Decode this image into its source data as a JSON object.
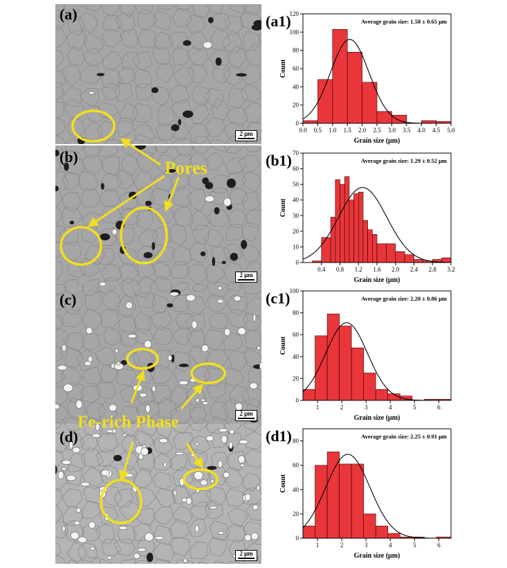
{
  "micrographs": [
    {
      "label": "(a)",
      "scale": "2 μm"
    },
    {
      "label": "(b)",
      "scale": "2 μm"
    },
    {
      "label": "(c)",
      "scale": "2 μm"
    },
    {
      "label": "(d)",
      "scale": "2 μm"
    }
  ],
  "annotations": {
    "pores": "Pores",
    "fe_rich": "Fe-rich Phase"
  },
  "colors": {
    "bar_fill": "#e8363a",
    "fit_line": "#000000",
    "annotation": "#f2df1e",
    "micrograph_bg": "#a6a6a6"
  },
  "chart_data": [
    {
      "type": "bar",
      "label": "(a1)",
      "annotation": "Average grain size: 1.58 ± 0.65 μm",
      "xlabel": "Grain size (μm)",
      "ylabel": "Count",
      "xlim": [
        0,
        5
      ],
      "ylim": [
        0,
        120
      ],
      "xticks": [
        "0.0",
        "0.5",
        "1.0",
        "1.5",
        "2.0",
        "2.5",
        "3.0",
        "3.5",
        "4.0",
        "4.5",
        "5.0"
      ],
      "yticks": [
        "0",
        "20",
        "40",
        "60",
        "80",
        "100",
        "120"
      ],
      "bin_edges": [
        0,
        0.5,
        1,
        1.5,
        2,
        2.5,
        3,
        3.5,
        4,
        4.5,
        5
      ],
      "values": [
        3,
        48,
        103,
        78,
        45,
        13,
        9,
        0,
        3,
        2
      ],
      "fit": {
        "mean": 1.58,
        "sd": 0.65,
        "peak": 92
      }
    },
    {
      "type": "bar",
      "label": "(b1)",
      "annotation": "Average grain size: 1.29 ± 0.52 μm",
      "xlabel": "Grain size (μm)",
      "ylabel": "Count",
      "xlim": [
        0,
        3.2
      ],
      "ylim": [
        0,
        70
      ],
      "xticks": [
        "0.4",
        "0.8",
        "1.2",
        "1.6",
        "2.0",
        "2.4",
        "2.8",
        "3.2"
      ],
      "xtick_values": [
        0.4,
        0.8,
        1.2,
        1.6,
        2.0,
        2.4,
        2.8,
        3.2
      ],
      "yticks": [
        "0",
        "10",
        "20",
        "30",
        "40",
        "50",
        "60",
        "70"
      ],
      "bin_edges": [
        0.2,
        0.4,
        0.6,
        0.7,
        0.8,
        0.9,
        1.0,
        1.1,
        1.2,
        1.3,
        1.4,
        1.5,
        1.6,
        1.8,
        2.0,
        2.2,
        2.4,
        2.6,
        2.8,
        3.0,
        3.2
      ],
      "values": [
        1,
        16,
        29,
        53,
        50,
        55,
        40,
        44,
        45,
        27,
        21,
        18,
        12,
        12,
        7,
        5,
        2,
        1,
        2,
        3
      ],
      "fit": {
        "mean": 1.29,
        "sd": 0.52,
        "peak": 48
      }
    },
    {
      "type": "bar",
      "label": "(c1)",
      "annotation": "Average grain size: 2.20 ± 0.86 μm",
      "xlabel": "Grain size (μm)",
      "ylabel": "Count",
      "xlim": [
        0.4,
        6.5
      ],
      "ylim": [
        0,
        100
      ],
      "xticks": [
        "1",
        "2",
        "3",
        "4",
        "5",
        "6"
      ],
      "xtick_values": [
        1,
        2,
        3,
        4,
        5,
        6
      ],
      "yticks": [
        "0",
        "20",
        "40",
        "60",
        "80",
        "100"
      ],
      "bin_edges": [
        0.4,
        0.9,
        1.4,
        1.9,
        2.4,
        2.9,
        3.4,
        3.9,
        4.4,
        4.9,
        5.4,
        5.9,
        6.5
      ],
      "values": [
        10,
        59,
        79,
        68,
        48,
        25,
        10,
        6,
        4,
        0,
        1,
        1
      ],
      "fit": {
        "mean": 2.2,
        "sd": 0.86,
        "peak": 71
      }
    },
    {
      "type": "bar",
      "label": "(d1)",
      "annotation": "Average grain size: 2.25 ± 0.91 μm",
      "xlabel": "Grain size (μm)",
      "ylabel": "Count",
      "xlim": [
        0.4,
        6.5
      ],
      "ylim": [
        0,
        90
      ],
      "xticks": [
        "1",
        "2",
        "3",
        "4",
        "5",
        "6"
      ],
      "xtick_values": [
        1,
        2,
        3,
        4,
        5,
        6
      ],
      "yticks": [
        "0",
        "20",
        "40",
        "60",
        "80"
      ],
      "bin_edges": [
        0.4,
        0.9,
        1.4,
        1.9,
        2.4,
        2.9,
        3.4,
        3.9,
        4.4,
        4.9,
        5.4,
        5.9,
        6.5
      ],
      "values": [
        10,
        60,
        71,
        61,
        61,
        20,
        10,
        4,
        1,
        1,
        0,
        1
      ],
      "fit": {
        "mean": 2.25,
        "sd": 0.91,
        "peak": 69
      }
    }
  ]
}
